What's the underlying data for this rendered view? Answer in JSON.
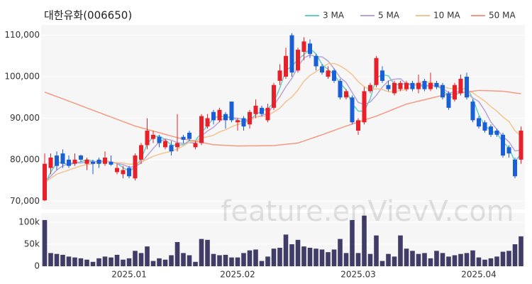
{
  "watermark": "feature.enVievV.com",
  "chart_data": [
    {
      "type": "candlestick",
      "title": "대한유화(006650)",
      "up_color": "#e8202a",
      "down_color": "#1a5fd6",
      "open": [
        70200,
        78000,
        81000,
        81500,
        80000,
        79000,
        81000,
        79000,
        79500,
        80000,
        79000,
        79500,
        77000,
        76500,
        78000,
        75500,
        80000,
        83500,
        85000,
        85500,
        83000,
        83500,
        83000,
        85500,
        86500,
        83000,
        84000,
        88000,
        91500,
        89500,
        91000,
        94000,
        89000,
        90000,
        88500,
        91000,
        92500,
        89500,
        92500,
        99000,
        100000,
        110000,
        101500,
        106000,
        108000,
        105000,
        102500,
        100000,
        101500,
        99000,
        95000,
        95000,
        87000,
        89000,
        96500,
        98000,
        101500,
        98000,
        96000,
        97000,
        97000,
        98500,
        97000,
        99000,
        97000,
        98500,
        98000,
        96000,
        94500,
        96000,
        100000,
        94000,
        90000,
        89000,
        88000,
        87000,
        86000,
        83000,
        80000,
        80000
      ],
      "high": [
        81500,
        81500,
        82000,
        82500,
        81000,
        81500,
        81200,
        80500,
        80000,
        80500,
        82000,
        81000,
        79000,
        78500,
        78500,
        81500,
        84000,
        90000,
        87000,
        86000,
        85000,
        84500,
        91000,
        86000,
        87000,
        84500,
        91000,
        91000,
        92000,
        92500,
        91500,
        94000,
        90000,
        90500,
        92000,
        94500,
        93000,
        93500,
        98500,
        103000,
        107000,
        110500,
        107000,
        109500,
        109000,
        105500,
        103000,
        102500,
        102000,
        99500,
        97000,
        95500,
        90000,
        97500,
        98500,
        105000,
        102500,
        99000,
        99000,
        99000,
        99000,
        99000,
        100500,
        99500,
        101000,
        99000,
        98500,
        96500,
        98500,
        100500,
        101000,
        94500,
        90500,
        89500,
        88500,
        87500,
        86500,
        83500,
        80500,
        88000
      ],
      "low": [
        70000,
        76500,
        77500,
        78000,
        78000,
        78500,
        79500,
        77500,
        76500,
        78000,
        78500,
        78500,
        76500,
        75500,
        75500,
        75000,
        79000,
        82500,
        84000,
        83000,
        82500,
        81000,
        82000,
        84000,
        84500,
        82500,
        83500,
        87500,
        88500,
        89000,
        87500,
        89000,
        87000,
        87000,
        87500,
        90000,
        90500,
        89000,
        92000,
        98000,
        99500,
        100000,
        101000,
        104000,
        104500,
        101500,
        100500,
        99500,
        98500,
        94500,
        94500,
        88500,
        86000,
        88500,
        96000,
        97500,
        98500,
        96500,
        95500,
        96500,
        96500,
        96500,
        96000,
        96500,
        96500,
        97000,
        94500,
        92000,
        94000,
        95500,
        94500,
        89000,
        87500,
        86500,
        85500,
        85500,
        80500,
        80500,
        75500,
        79000
      ],
      "close": [
        79000,
        80500,
        78500,
        79000,
        78500,
        80000,
        80000,
        80000,
        79000,
        79000,
        80500,
        78800,
        78000,
        77500,
        76000,
        81000,
        83500,
        87000,
        86000,
        84000,
        84500,
        82000,
        84000,
        84800,
        85000,
        84000,
        90500,
        90000,
        89500,
        92000,
        89500,
        89500,
        89500,
        88000,
        91500,
        93000,
        91000,
        92500,
        98000,
        101500,
        105000,
        101000,
        106500,
        108500,
        105500,
        102500,
        101000,
        101500,
        99000,
        95000,
        96500,
        89000,
        89500,
        96500,
        98000,
        104500,
        99000,
        97000,
        98500,
        98500,
        98500,
        97000,
        98500,
        97000,
        98500,
        97500,
        95000,
        92500,
        98000,
        99500,
        95000,
        89500,
        88000,
        87000,
        86000,
        86000,
        81000,
        81500,
        76000,
        87000
      ],
      "lines": [
        {
          "name": "3 MA",
          "color": "#62cfc6",
          "values": [
            74000,
            77000,
            79300,
            79300,
            78700,
            79200,
            79500,
            80000,
            79700,
            79300,
            79500,
            79400,
            79100,
            78100,
            77200,
            78200,
            80200,
            83800,
            85500,
            85700,
            84800,
            83500,
            83500,
            83600,
            84600,
            84600,
            86500,
            88200,
            90000,
            90500,
            90300,
            90300,
            89500,
            89000,
            89700,
            90800,
            91800,
            92200,
            93800,
            97300,
            101500,
            102500,
            104200,
            105300,
            106800,
            105500,
            103000,
            101700,
            100500,
            98500,
            96800,
            93500,
            91700,
            91700,
            94700,
            99700,
            100500,
            100200,
            98200,
            98000,
            98500,
            98000,
            98000,
            97500,
            98000,
            97700,
            97000,
            95000,
            95200,
            96700,
            97500,
            94700,
            90800,
            88200,
            87000,
            86300,
            84300,
            82800,
            79500,
            81500
          ]
        },
        {
          "name": "5 MA",
          "color": "#b9a3d8",
          "values": [
            74500,
            76000,
            77500,
            78500,
            79100,
            79300,
            79200,
            79500,
            79500,
            79600,
            79700,
            79500,
            79100,
            78800,
            78200,
            78300,
            79200,
            81000,
            82700,
            84300,
            85000,
            84700,
            84100,
            83900,
            84100,
            84000,
            85700,
            86900,
            87800,
            89200,
            90300,
            90100,
            90000,
            89700,
            89600,
            90300,
            90600,
            91200,
            93200,
            95200,
            97600,
            99600,
            102400,
            104500,
            105300,
            104800,
            104800,
            103800,
            101900,
            99800,
            98600,
            96200,
            93800,
            93300,
            93900,
            95500,
            97500,
            99000,
            99400,
            99500,
            98300,
            97900,
            98200,
            97900,
            97900,
            97700,
            97300,
            96100,
            96300,
            96500,
            96000,
            94900,
            94000,
            91800,
            89100,
            87300,
            85600,
            84300,
            82100,
            82300
          ]
        },
        {
          "name": "10 MA",
          "color": "#f4c48f",
          "values": [
            74500,
            75500,
            76500,
            77000,
            77500,
            78000,
            78500,
            78800,
            79000,
            79400,
            79500,
            79400,
            79300,
            79200,
            78900,
            79000,
            79400,
            80100,
            80800,
            81300,
            81700,
            82000,
            82600,
            83300,
            84200,
            84500,
            85200,
            85500,
            85900,
            86700,
            87200,
            87900,
            88500,
            88800,
            89400,
            90300,
            90400,
            90600,
            91500,
            92400,
            94000,
            95100,
            96800,
            98900,
            100300,
            101200,
            102200,
            103100,
            103200,
            102600,
            101700,
            100500,
            98800,
            97600,
            96900,
            97100,
            96900,
            96400,
            96400,
            96700,
            96900,
            97700,
            98600,
            98700,
            98700,
            98000,
            97600,
            97200,
            97100,
            97200,
            96900,
            96100,
            95100,
            94100,
            92800,
            91700,
            90300,
            89200,
            87000,
            85700
          ]
        },
        {
          "name": "50 MA",
          "color": "#f49a82",
          "values": [
            96300,
            95750,
            95200,
            94660,
            94110,
            93570,
            93020,
            92470,
            91930,
            91380,
            90830,
            90290,
            89740,
            89190,
            88650,
            88100,
            87700,
            87300,
            86900,
            86500,
            86100,
            85700,
            85300,
            85020,
            84730,
            84450,
            84170,
            83880,
            83600,
            83530,
            83450,
            83380,
            83300,
            83320,
            83330,
            83350,
            83370,
            83380,
            83400,
            83550,
            83700,
            83850,
            84000,
            84500,
            85000,
            85500,
            86000,
            86530,
            87050,
            87580,
            88100,
            88580,
            89060,
            89540,
            90020,
            90500,
            91080,
            91660,
            92240,
            92820,
            93400,
            93750,
            94100,
            94450,
            94800,
            95150,
            95500,
            95700,
            95900,
            96100,
            96300,
            96500,
            96700,
            96650,
            96600,
            96550,
            96500,
            96300,
            96100,
            95900
          ]
        }
      ],
      "ylim": [
        68000,
        112500
      ],
      "yticks": [
        {
          "value": 70000,
          "label": "70,000"
        },
        {
          "value": 80000,
          "label": "80,000"
        },
        {
          "value": 90000,
          "label": "90,000"
        },
        {
          "value": 100000,
          "label": "100,000"
        },
        {
          "value": 110000,
          "label": "110,000"
        }
      ],
      "grid": true
    },
    {
      "type": "bar",
      "color": "#3f3d68",
      "categories": [
        null,
        null,
        null,
        null,
        null,
        null,
        null,
        null,
        null,
        null,
        null,
        null,
        null,
        null,
        "2025.01",
        null,
        null,
        null,
        null,
        null,
        null,
        null,
        null,
        null,
        null,
        null,
        null,
        null,
        null,
        null,
        null,
        null,
        "2025.02",
        null,
        null,
        null,
        null,
        null,
        null,
        null,
        null,
        null,
        null,
        null,
        null,
        null,
        null,
        null,
        null,
        null,
        null,
        null,
        "2025.03",
        null,
        null,
        null,
        null,
        null,
        null,
        null,
        null,
        null,
        null,
        null,
        null,
        null,
        null,
        null,
        null,
        null,
        null,
        null,
        "2025.04",
        null,
        null,
        null,
        null,
        null,
        null,
        null
      ],
      "values": [
        105000,
        30000,
        28000,
        26000,
        22000,
        20000,
        18000,
        15000,
        10000,
        18000,
        22000,
        20000,
        26000,
        15000,
        18000,
        35000,
        30000,
        45000,
        12000,
        18000,
        15000,
        25000,
        55000,
        30000,
        25000,
        10000,
        62000,
        60000,
        28000,
        25000,
        26000,
        20000,
        20000,
        30000,
        36000,
        38000,
        12000,
        22000,
        40000,
        42000,
        72000,
        50000,
        60000,
        45000,
        42000,
        40000,
        38000,
        32000,
        38000,
        62000,
        30000,
        105000,
        30000,
        115000,
        28000,
        70000,
        12000,
        28000,
        22000,
        70000,
        40000,
        35000,
        28000,
        30000,
        18000,
        35000,
        30000,
        22000,
        25000,
        28000,
        30000,
        36000,
        20000,
        15000,
        18000,
        22000,
        33000,
        35000,
        50000,
        68000
      ],
      "ylim": [
        0,
        121000
      ],
      "yticks": [
        0,
        {
          "value": 50000,
          "label": "50k"
        },
        {
          "value": 100000,
          "label": "100k"
        }
      ],
      "grid": true
    }
  ]
}
